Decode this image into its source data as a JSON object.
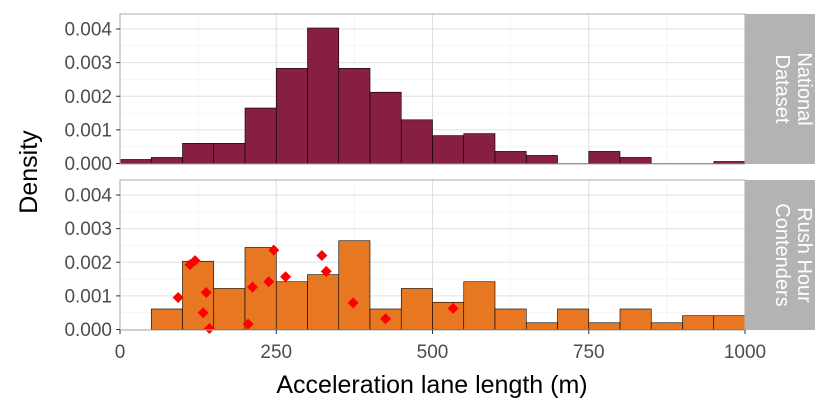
{
  "chart_data": {
    "type": "histogram",
    "xlabel": "Acceleration lane length (m)",
    "ylabel": "Density",
    "xlim": [
      0,
      1000
    ],
    "ylim": [
      0,
      0.0042
    ],
    "x_ticks": [
      "0",
      "250",
      "500",
      "750",
      "1000"
    ],
    "x_tick_values": [
      0,
      250,
      500,
      750,
      1000
    ],
    "y_ticks": [
      "0.000",
      "0.001",
      "0.002",
      "0.003",
      "0.004"
    ],
    "y_tick_values": [
      0,
      0.001,
      0.002,
      0.003,
      0.004
    ],
    "bin_width": 50,
    "grid": true,
    "panels": [
      {
        "strip_lines": [
          "National",
          "Dataset"
        ],
        "fill": "#861f41",
        "bins": [
          {
            "x0": 0,
            "x1": 50,
            "density": 0.00012
          },
          {
            "x0": 50,
            "x1": 100,
            "density": 0.00018
          },
          {
            "x0": 100,
            "x1": 150,
            "density": 0.0006
          },
          {
            "x0": 150,
            "x1": 200,
            "density": 0.0006
          },
          {
            "x0": 200,
            "x1": 250,
            "density": 0.00165
          },
          {
            "x0": 250,
            "x1": 300,
            "density": 0.00283
          },
          {
            "x0": 300,
            "x1": 350,
            "density": 0.00403
          },
          {
            "x0": 350,
            "x1": 400,
            "density": 0.00283
          },
          {
            "x0": 400,
            "x1": 450,
            "density": 0.00212
          },
          {
            "x0": 450,
            "x1": 500,
            "density": 0.0013
          },
          {
            "x0": 500,
            "x1": 550,
            "density": 0.00083
          },
          {
            "x0": 550,
            "x1": 600,
            "density": 0.00089
          },
          {
            "x0": 600,
            "x1": 650,
            "density": 0.00036
          },
          {
            "x0": 650,
            "x1": 700,
            "density": 0.00024
          },
          {
            "x0": 700,
            "x1": 750,
            "density": 0
          },
          {
            "x0": 750,
            "x1": 800,
            "density": 0.00036
          },
          {
            "x0": 800,
            "x1": 850,
            "density": 0.00018
          },
          {
            "x0": 850,
            "x1": 900,
            "density": 0
          },
          {
            "x0": 900,
            "x1": 950,
            "density": 0
          },
          {
            "x0": 950,
            "x1": 1000,
            "density": 6e-05
          }
        ],
        "points": []
      },
      {
        "strip_lines": [
          "Rush Hour",
          "Contenders"
        ],
        "fill": "#e87722",
        "bins": [
          {
            "x0": 50,
            "x1": 100,
            "density": 0.00061
          },
          {
            "x0": 100,
            "x1": 150,
            "density": 0.00203
          },
          {
            "x0": 150,
            "x1": 200,
            "density": 0.00122
          },
          {
            "x0": 200,
            "x1": 250,
            "density": 0.00244
          },
          {
            "x0": 250,
            "x1": 300,
            "density": 0.00142
          },
          {
            "x0": 300,
            "x1": 350,
            "density": 0.00163
          },
          {
            "x0": 350,
            "x1": 400,
            "density": 0.00264
          },
          {
            "x0": 400,
            "x1": 450,
            "density": 0.00061
          },
          {
            "x0": 450,
            "x1": 500,
            "density": 0.00122
          },
          {
            "x0": 500,
            "x1": 550,
            "density": 0.00081
          },
          {
            "x0": 550,
            "x1": 600,
            "density": 0.00142
          },
          {
            "x0": 600,
            "x1": 650,
            "density": 0.00061
          },
          {
            "x0": 650,
            "x1": 700,
            "density": 0.0002
          },
          {
            "x0": 700,
            "x1": 750,
            "density": 0.00061
          },
          {
            "x0": 750,
            "x1": 800,
            "density": 0.0002
          },
          {
            "x0": 800,
            "x1": 850,
            "density": 0.00061
          },
          {
            "x0": 850,
            "x1": 900,
            "density": 0.0002
          },
          {
            "x0": 900,
            "x1": 950,
            "density": 0.00041
          },
          {
            "x0": 950,
            "x1": 1000,
            "density": 0.00041
          }
        ],
        "points": [
          {
            "x": 93,
            "y": 0.00095
          },
          {
            "x": 112,
            "y": 0.00193
          },
          {
            "x": 120,
            "y": 0.00205
          },
          {
            "x": 133,
            "y": 0.0005
          },
          {
            "x": 138,
            "y": 0.0011
          },
          {
            "x": 143,
            "y": 3e-05
          },
          {
            "x": 205,
            "y": 0.00016
          },
          {
            "x": 212,
            "y": 0.00126
          },
          {
            "x": 238,
            "y": 0.00142
          },
          {
            "x": 246,
            "y": 0.00236
          },
          {
            "x": 265,
            "y": 0.00157
          },
          {
            "x": 323,
            "y": 0.0022
          },
          {
            "x": 330,
            "y": 0.00173
          },
          {
            "x": 373,
            "y": 0.00079
          },
          {
            "x": 425,
            "y": 0.00032
          },
          {
            "x": 533,
            "y": 0.00063
          }
        ],
        "point_color": "#ff0000"
      }
    ]
  }
}
